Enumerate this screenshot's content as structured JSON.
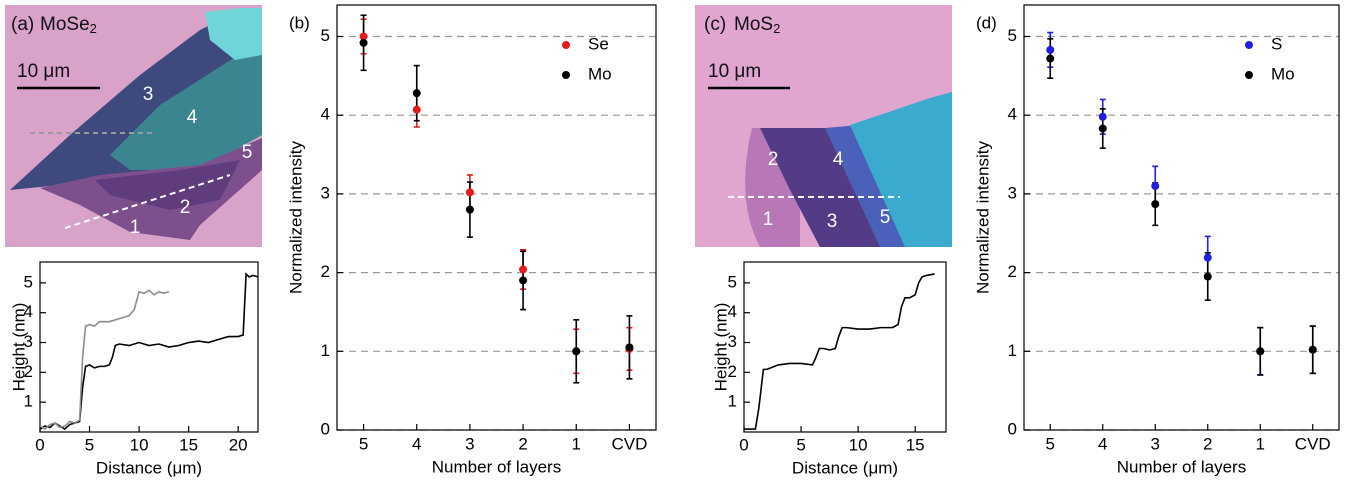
{
  "images": [
    {
      "panel_label": "(a)",
      "material": "MoSe",
      "material_subscript": "2",
      "scale_bar": "10 μm",
      "layers": [
        "3",
        "4",
        "5",
        "2",
        "1"
      ]
    },
    {
      "panel_label": "(c)",
      "material": "MoS",
      "material_subscript": "2",
      "scale_bar": "10 μm",
      "layers": [
        "2",
        "4",
        "1",
        "3",
        "5"
      ]
    }
  ],
  "chart_data": [
    {
      "type": "line",
      "x_label": "Distance (μm)",
      "y_label": "Height (nm)",
      "xlim": [
        0,
        22
      ],
      "xticks": [
        0,
        5,
        10,
        15,
        20
      ],
      "ylim": [
        0,
        5.7
      ],
      "yticks": [
        1,
        2,
        3,
        4,
        5
      ],
      "series": [
        {
          "color": "#000000",
          "x": [
            0,
            0.5,
            1,
            1.5,
            2,
            2.5,
            3,
            3.5,
            4,
            4.3,
            4.6,
            5,
            5.5,
            6,
            6.5,
            7,
            7.3,
            7.6,
            8,
            9,
            10,
            11,
            12,
            13,
            14,
            15,
            16,
            17,
            18,
            19,
            20,
            20.5,
            20.8,
            21.1,
            21.5,
            22
          ],
          "values": [
            0.1,
            0.2,
            0.15,
            0.3,
            0.2,
            0.1,
            0.25,
            0.3,
            0.35,
            1.5,
            2.2,
            2.25,
            2.15,
            2.2,
            2.2,
            2.25,
            2.5,
            2.9,
            2.95,
            2.9,
            3.0,
            2.9,
            2.95,
            2.85,
            2.9,
            3.0,
            3.05,
            3.0,
            3.1,
            3.2,
            3.2,
            3.25,
            5.3,
            5.2,
            5.25,
            5.2
          ]
        },
        {
          "color": "#8c8c8c",
          "x": [
            0,
            0.5,
            1,
            1.5,
            2,
            2.5,
            3,
            3.5,
            4,
            4.3,
            4.6,
            5,
            5.5,
            6,
            7,
            8,
            9,
            9.5,
            10,
            10.5,
            11,
            11.5,
            12,
            12.5,
            13
          ],
          "values": [
            0.2,
            0.1,
            0.25,
            0.3,
            0.15,
            0.2,
            0.35,
            0.3,
            0.4,
            2.5,
            3.55,
            3.6,
            3.55,
            3.7,
            3.7,
            3.8,
            3.9,
            4.1,
            4.7,
            4.65,
            4.75,
            4.6,
            4.7,
            4.65,
            4.7
          ]
        }
      ]
    },
    {
      "type": "scatter",
      "panel_label": "(b)",
      "x_label": "Number of layers",
      "y_label": "Normalized intensity",
      "categories": [
        "5",
        "4",
        "3",
        "2",
        "1",
        "CVD"
      ],
      "ylim": [
        0,
        5.4
      ],
      "yticks": [
        0,
        1,
        2,
        3,
        4,
        5
      ],
      "grid": true,
      "legend": "upper right",
      "series": [
        {
          "name": "Se",
          "color": "#e41a1c",
          "values": [
            5.0,
            4.07,
            3.02,
            2.04,
            1.0,
            1.03
          ],
          "errors": [
            0.22,
            0.22,
            0.22,
            0.25,
            0.28,
            0.27
          ]
        },
        {
          "name": "Mo",
          "color": "#000000",
          "values": [
            4.92,
            4.28,
            2.8,
            1.9,
            1.0,
            1.05
          ],
          "errors": [
            0.35,
            0.35,
            0.35,
            0.37,
            0.4,
            0.4
          ]
        }
      ]
    },
    {
      "type": "line",
      "x_label": "Distance (μm)",
      "y_label": "Height (nm)",
      "xlim": [
        0,
        17.7
      ],
      "xticks": [
        0,
        5,
        10,
        15
      ],
      "ylim": [
        0,
        5.7
      ],
      "yticks": [
        1,
        2,
        3,
        4,
        5
      ],
      "series": [
        {
          "color": "#000000",
          "x": [
            0,
            0.5,
            1,
            1.3,
            1.7,
            2,
            3,
            4,
            5,
            6,
            6.3,
            6.6,
            7,
            7.5,
            8,
            8.3,
            8.6,
            9,
            10,
            11,
            12,
            13,
            13.5,
            13.8,
            14.1,
            14.5,
            15,
            15.3,
            15.6,
            16,
            16.7
          ],
          "values": [
            0.1,
            0.1,
            0.1,
            0.8,
            2.1,
            2.1,
            2.25,
            2.3,
            2.3,
            2.25,
            2.5,
            2.8,
            2.8,
            2.75,
            2.8,
            3.2,
            3.5,
            3.5,
            3.45,
            3.45,
            3.5,
            3.5,
            3.6,
            4.2,
            4.5,
            4.5,
            4.6,
            5.0,
            5.2,
            5.25,
            5.3
          ]
        }
      ]
    },
    {
      "type": "scatter",
      "panel_label": "(d)",
      "x_label": "Number of layers",
      "y_label": "Normalized intensity",
      "categories": [
        "5",
        "4",
        "3",
        "2",
        "1",
        "CVD"
      ],
      "ylim": [
        0,
        5.4
      ],
      "yticks": [
        0,
        1,
        2,
        3,
        4,
        5
      ],
      "grid": true,
      "legend": "upper right",
      "series": [
        {
          "name": "S",
          "color": "#1f1fe0",
          "values": [
            4.83,
            3.98,
            3.1,
            2.19,
            1.0,
            1.02
          ],
          "errors": [
            0.22,
            0.22,
            0.25,
            0.27,
            0.3,
            0.3
          ]
        },
        {
          "name": "Mo",
          "color": "#000000",
          "values": [
            4.72,
            3.83,
            2.87,
            1.95,
            1.0,
            1.02
          ],
          "errors": [
            0.25,
            0.25,
            0.27,
            0.3,
            0.3,
            0.3
          ]
        }
      ]
    }
  ]
}
